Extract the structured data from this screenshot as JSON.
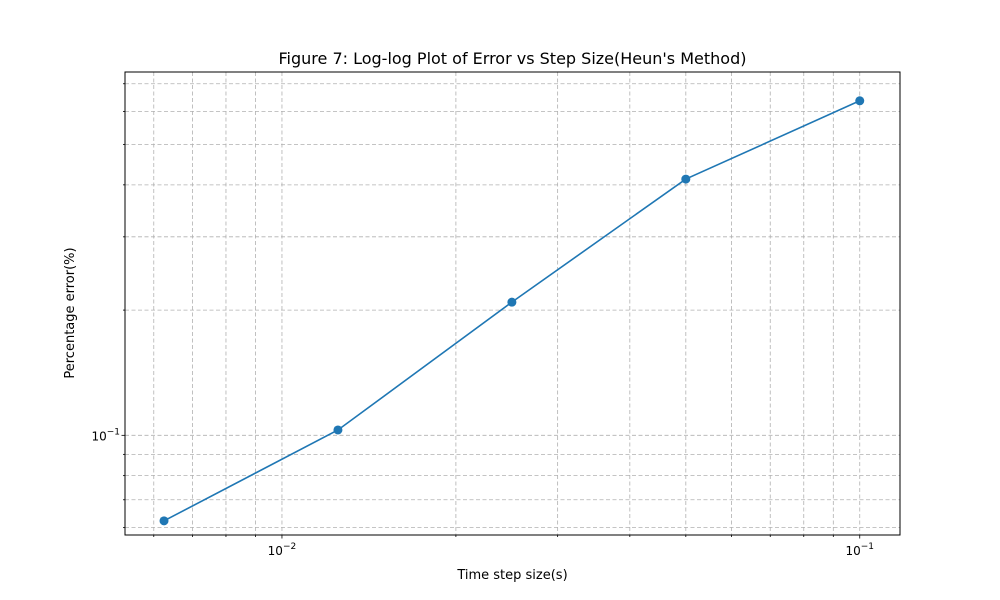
{
  "chart_data": {
    "type": "line",
    "title": "Figure 7: Log-log Plot of Error vs Step Size(Heun's Method)",
    "xlabel": "Time step size(s)",
    "ylabel": "Percentage error(%)",
    "xscale": "log",
    "yscale": "log",
    "grid": true,
    "grid_which": "both",
    "xlim": [
      0.00535,
      0.1174
    ],
    "ylim": [
      0.0576,
      0.747
    ],
    "x_major_ticks": [
      {
        "value": 0.01,
        "base": "10",
        "exp": "−2"
      },
      {
        "value": 0.1,
        "base": "10",
        "exp": "−1"
      }
    ],
    "y_major_ticks": [
      {
        "value": 0.1,
        "base": "10",
        "exp": "−1"
      }
    ],
    "series": [
      {
        "color": "#1f77b4",
        "marker": "circle",
        "x": [
          0.00625,
          0.0125,
          0.025,
          0.05,
          0.1
        ],
        "y": [
          0.0623,
          0.103,
          0.209,
          0.413,
          0.637
        ]
      }
    ]
  }
}
